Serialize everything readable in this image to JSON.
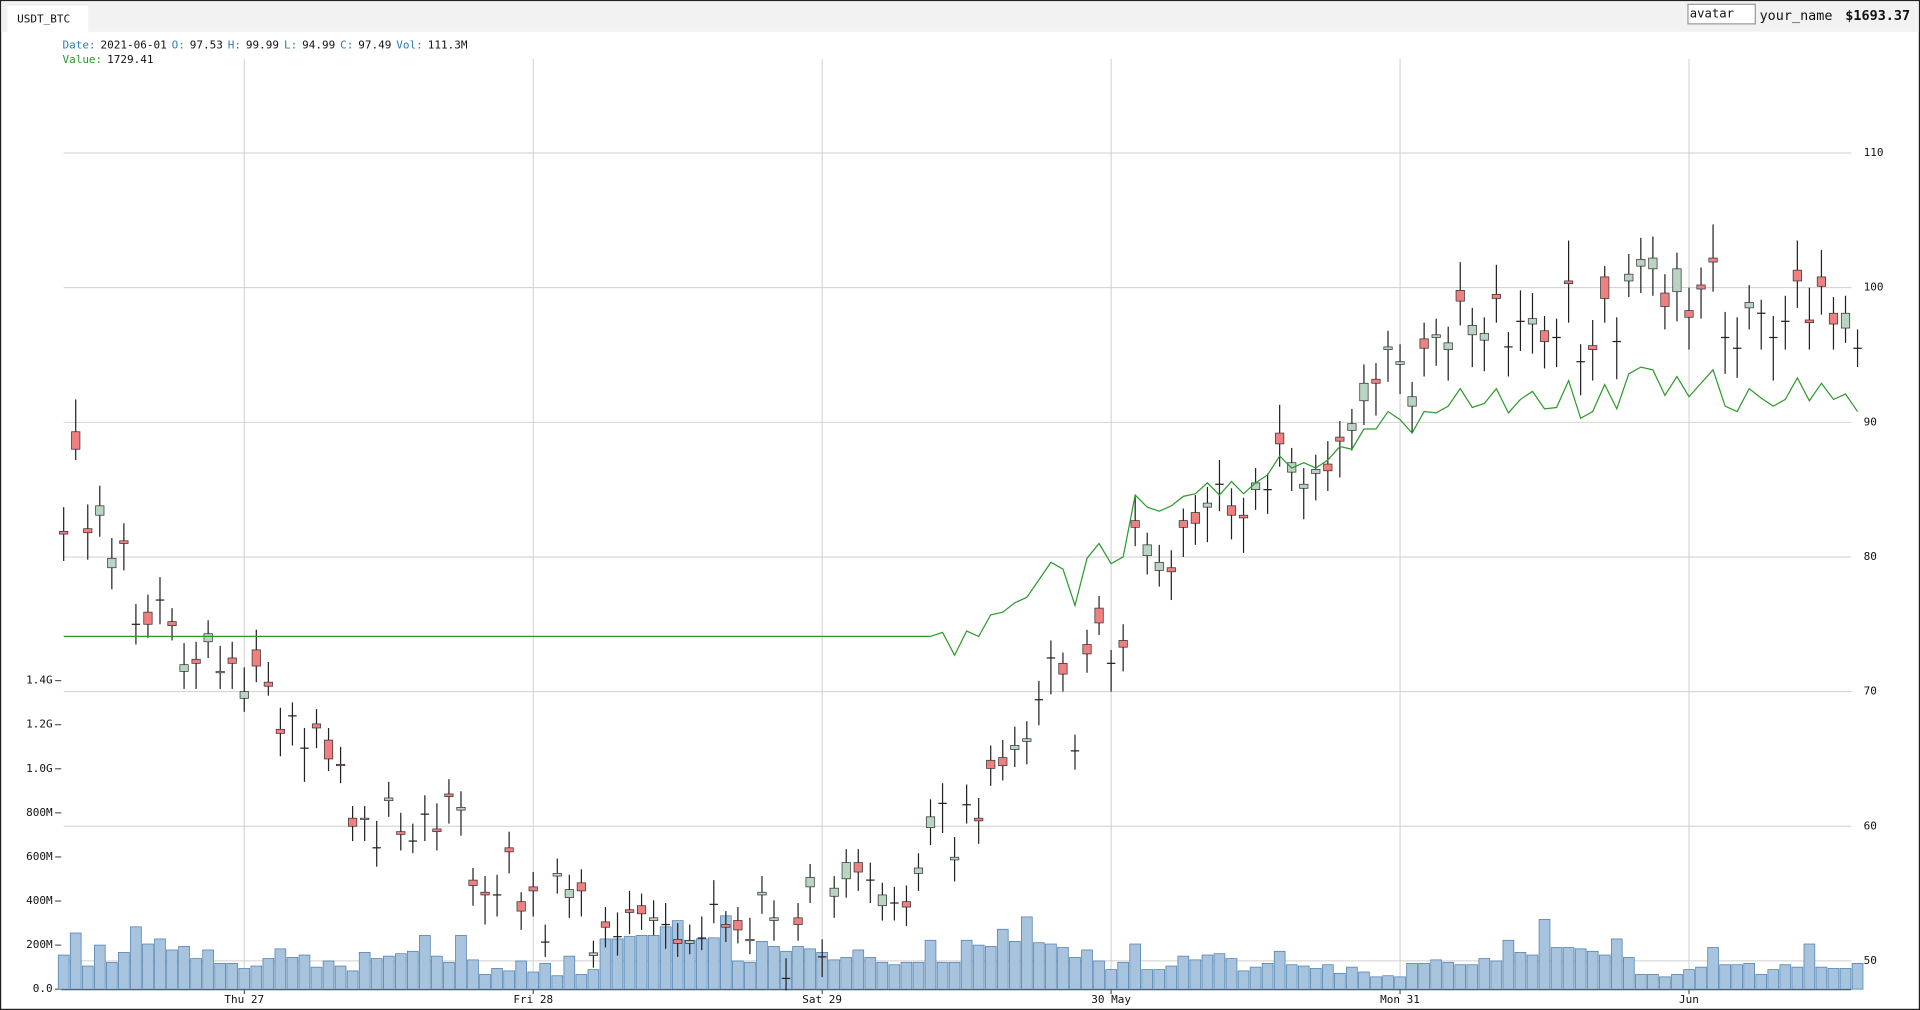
{
  "header": {
    "symbol": "USDT_BTC",
    "avatar": "avatar",
    "user": "your_name",
    "balance": "$1693.37"
  },
  "info": [
    {
      "label": "Date:",
      "value": "2021-06-01"
    },
    {
      "label": "O:",
      "value": "97.53"
    },
    {
      "label": "H:",
      "value": "99.99"
    },
    {
      "label": "L:",
      "value": "94.99"
    },
    {
      "label": "C:",
      "value": "97.49"
    },
    {
      "label": "Vol:",
      "value": "111.3M"
    }
  ],
  "value_info": {
    "label": "Value:",
    "value": "1729.41"
  },
  "chart_data": {
    "type": "candlestick",
    "grid": true,
    "up_color": "#b9d5c2",
    "down_color": "#f08080",
    "wick_color": "#222222",
    "ylim": [
      47.9,
      117
    ],
    "yticks": [
      50,
      60,
      70,
      80,
      90,
      100,
      110
    ],
    "y2lim": [
      0,
      4222
    ],
    "y2ticks": [
      {
        "value": 0,
        "label": "0.0"
      },
      {
        "value": 200,
        "label": "200M"
      },
      {
        "value": 400,
        "label": "400M"
      },
      {
        "value": 600,
        "label": "600M"
      },
      {
        "value": 800,
        "label": "800M"
      },
      {
        "value": 1000,
        "label": "1.0G"
      },
      {
        "value": 1200,
        "label": "1.2G"
      },
      {
        "value": 1400,
        "label": "1.4G"
      }
    ],
    "xticks": [
      {
        "value": 15,
        "label": "Thu 27"
      },
      {
        "value": 39,
        "label": "Fri 28"
      },
      {
        "value": 63,
        "label": "Sat 29"
      },
      {
        "value": 87,
        "label": "30 May"
      },
      {
        "value": 111,
        "label": "Mon 31"
      },
      {
        "value": 135,
        "label": "Jun"
      }
    ],
    "open": [
      81.9,
      89.3,
      82.1,
      83.1,
      79.2,
      81.2,
      75.0,
      75.9,
      76.8,
      75.2,
      71.5,
      72.4,
      73.7,
      71.4,
      72.5,
      69.5,
      73.1,
      70.7,
      67.2,
      68.2,
      65.8,
      67.6,
      66.4,
      64.6,
      60.6,
      60.5,
      58.4,
      61.9,
      59.6,
      58.9,
      60.9,
      59.8,
      62.4,
      61.2,
      56.0,
      55.1,
      54.9,
      58.4,
      54.4,
      55.5,
      51.4,
      56.3,
      54.7,
      55.8,
      50.4,
      52.9,
      51.8,
      53.8,
      54.1,
      53.0,
      52.7,
      51.6,
      51.3,
      51.7,
      54.2,
      52.7,
      53.0,
      51.5,
      54.9,
      53.0,
      48.7,
      53.2,
      55.5,
      50.3,
      54.8,
      56.1,
      57.3,
      56.0,
      54.1,
      54.3,
      54.4,
      56.5,
      59.9,
      61.7,
      57.5,
      61.6,
      60.6,
      64.9,
      65.1,
      65.7,
      66.3,
      69.4,
      72.5,
      72.1,
      65.6,
      73.5,
      76.2,
      72.1,
      73.8,
      82.7,
      80.1,
      79.0,
      79.2,
      82.7,
      83.3,
      83.7,
      85.4,
      83.8,
      83.1,
      85.0,
      85.0,
      89.2,
      86.3,
      85.1,
      86.2,
      86.9,
      88.9,
      89.4,
      91.6,
      93.2,
      95.4,
      94.3,
      91.2,
      96.2,
      96.3,
      95.4,
      99.8,
      96.5,
      96.1,
      99.5,
      95.6,
      97.5,
      97.3,
      96.8,
      96.3,
      100.5,
      94.5,
      95.7,
      100.8,
      96.0,
      100.5,
      101.6,
      101.4,
      99.6,
      99.7,
      98.3,
      100.2,
      102.2,
      96.3,
      95.5,
      98.5,
      98.1,
      96.3,
      97.5,
      101.3,
      97.6,
      100.8,
      98.1,
      97.0,
      95.5
    ],
    "high": [
      83.7,
      91.7,
      83.9,
      85.3,
      81.4,
      82.5,
      76.5,
      77.2,
      78.5,
      76.2,
      73.6,
      73.7,
      75.3,
      73.4,
      73.7,
      71.8,
      74.6,
      72.2,
      68.8,
      69.2,
      67.3,
      68.7,
      67.3,
      65.9,
      61.5,
      61.5,
      60.4,
      63.3,
      61.0,
      60.2,
      62.3,
      61.7,
      63.5,
      62.6,
      56.9,
      56.3,
      56.4,
      59.6,
      55.1,
      56.6,
      52.7,
      57.6,
      56.4,
      56.8,
      51.5,
      54.0,
      53.6,
      55.2,
      55.0,
      54.5,
      54.3,
      52.8,
      52.7,
      53.3,
      56.0,
      53.7,
      54.0,
      53.2,
      56.3,
      54.5,
      50.2,
      54.3,
      57.2,
      51.6,
      56.3,
      58.3,
      58.3,
      57.3,
      55.8,
      55.5,
      55.6,
      58.0,
      62.0,
      63.2,
      59.2,
      63.1,
      62.1,
      66.0,
      66.4,
      67.4,
      67.8,
      70.8,
      73.8,
      72.9,
      66.8,
      74.6,
      77.1,
      73.1,
      75.0,
      84.6,
      81.8,
      80.9,
      80.5,
      83.6,
      84.6,
      85.2,
      87.2,
      85.1,
      84.4,
      86.6,
      86.2,
      91.3,
      88.1,
      86.6,
      87.6,
      88.6,
      90.1,
      91.0,
      94.3,
      94.4,
      96.8,
      95.8,
      93.0,
      97.4,
      97.7,
      97.1,
      101.9,
      98.5,
      97.8,
      101.7,
      96.7,
      99.8,
      99.6,
      97.9,
      97.7,
      103.5,
      95.8,
      97.6,
      101.6,
      97.8,
      102.5,
      103.7,
      103.8,
      101.0,
      102.6,
      100.0,
      101.5,
      104.7,
      98.2,
      97.8,
      100.2,
      99.1,
      97.9,
      99.4,
      103.5,
      100.0,
      102.8,
      99.3,
      99.4,
      96.9
    ],
    "low": [
      79.7,
      87.2,
      79.8,
      81.5,
      77.6,
      79.0,
      73.5,
      74.0,
      75.0,
      73.8,
      70.2,
      70.2,
      72.5,
      70.2,
      70.2,
      68.5,
      70.7,
      69.7,
      65.2,
      66.0,
      63.3,
      65.8,
      64.1,
      63.2,
      58.9,
      58.9,
      57.0,
      60.7,
      58.2,
      58.0,
      58.9,
      58.2,
      60.2,
      59.3,
      54.1,
      52.7,
      53.3,
      56.5,
      52.3,
      53.3,
      50.3,
      55.0,
      53.2,
      53.3,
      49.5,
      51.0,
      50.4,
      52.0,
      52.3,
      51.9,
      50.9,
      50.3,
      50.5,
      50.8,
      52.8,
      51.4,
      51.3,
      50.5,
      53.5,
      51.5,
      47.8,
      51.5,
      54.3,
      48.8,
      53.2,
      54.7,
      55.2,
      54.3,
      53.0,
      53.0,
      52.6,
      55.2,
      58.6,
      59.5,
      55.9,
      60.2,
      58.7,
      63.0,
      63.4,
      64.4,
      64.6,
      67.5,
      69.8,
      70.0,
      64.2,
      71.4,
      74.2,
      70.0,
      71.5,
      80.8,
      78.7,
      77.8,
      76.8,
      80.0,
      80.9,
      81.1,
      83.4,
      81.3,
      80.3,
      83.5,
      83.2,
      86.7,
      84.9,
      82.8,
      84.2,
      84.9,
      85.9,
      87.9,
      89.8,
      90.5,
      93.0,
      92.1,
      89.2,
      93.4,
      94.2,
      93.1,
      97.2,
      94.1,
      93.8,
      97.4,
      93.4,
      95.3,
      95.1,
      94.0,
      94.1,
      97.4,
      92.0,
      93.1,
      97.4,
      93.2,
      99.3,
      99.6,
      99.4,
      96.9,
      97.5,
      95.4,
      97.7,
      99.7,
      93.6,
      93.3,
      96.9,
      95.4,
      93.1,
      95.4,
      98.5,
      95.4,
      98.0,
      95.4,
      95.9,
      94.1
    ],
    "close": [
      81.7,
      88.0,
      81.8,
      83.8,
      79.9,
      81.0,
      75.0,
      75.0,
      76.8,
      74.9,
      72.0,
      72.1,
      74.3,
      71.5,
      72.1,
      70.0,
      71.9,
      70.4,
      66.9,
      68.2,
      65.8,
      67.3,
      65.0,
      64.5,
      60.0,
      60.6,
      58.4,
      62.1,
      59.4,
      58.9,
      60.9,
      59.6,
      62.2,
      61.4,
      55.6,
      54.9,
      54.9,
      58.1,
      53.7,
      55.2,
      51.4,
      56.5,
      55.3,
      55.2,
      50.6,
      52.5,
      51.8,
      53.6,
      53.5,
      53.2,
      52.7,
      51.3,
      51.5,
      51.7,
      54.2,
      52.5,
      52.3,
      51.6,
      55.1,
      53.2,
      48.7,
      52.7,
      56.2,
      50.3,
      55.4,
      57.3,
      56.6,
      56.0,
      54.9,
      54.3,
      54.0,
      56.9,
      60.7,
      61.7,
      57.7,
      61.6,
      60.4,
      64.3,
      64.5,
      66.0,
      66.5,
      69.4,
      72.5,
      71.3,
      65.6,
      72.8,
      75.1,
      72.1,
      73.3,
      82.2,
      80.9,
      79.6,
      78.9,
      82.2,
      82.5,
      84.0,
      85.4,
      83.1,
      82.9,
      85.5,
      85.0,
      88.4,
      87.0,
      85.4,
      86.5,
      86.4,
      88.6,
      89.9,
      92.9,
      92.9,
      95.6,
      94.5,
      91.9,
      95.5,
      96.5,
      95.9,
      99.0,
      97.2,
      96.6,
      99.2,
      95.6,
      97.5,
      97.7,
      96.0,
      96.3,
      100.3,
      94.5,
      95.4,
      99.2,
      96.0,
      101.0,
      102.1,
      102.2,
      98.6,
      101.4,
      97.8,
      99.9,
      101.9,
      96.3,
      95.5,
      98.9,
      98.1,
      96.3,
      97.5,
      100.5,
      97.4,
      100.1,
      97.3,
      98.1,
      95.5
    ],
    "volume": {
      "axis": "y2",
      "color": "#a7c3de",
      "values": [
        155,
        255,
        105,
        200,
        122,
        167,
        283,
        205,
        228,
        178,
        194,
        139,
        178,
        117,
        117,
        94,
        105,
        139,
        183,
        144,
        155,
        100,
        128,
        105,
        83,
        167,
        139,
        150,
        161,
        172,
        244,
        150,
        122,
        244,
        133,
        67,
        94,
        83,
        128,
        78,
        117,
        61,
        150,
        67,
        89,
        228,
        228,
        239,
        244,
        244,
        283,
        311,
        222,
        228,
        233,
        333,
        128,
        122,
        217,
        194,
        172,
        194,
        183,
        167,
        133,
        144,
        178,
        144,
        122,
        111,
        122,
        122,
        222,
        122,
        122,
        222,
        200,
        194,
        272,
        217,
        328,
        211,
        205,
        189,
        144,
        178,
        128,
        89,
        122,
        205,
        89,
        89,
        105,
        150,
        133,
        155,
        161,
        139,
        83,
        100,
        117,
        172,
        111,
        105,
        94,
        111,
        72,
        100,
        78,
        56,
        61,
        56,
        117,
        117,
        133,
        122,
        111,
        111,
        139,
        128,
        222,
        167,
        155,
        317,
        189,
        189,
        183,
        172,
        155,
        228,
        144,
        67,
        67,
        56,
        67,
        89,
        100,
        189,
        111,
        111,
        117,
        67,
        89,
        111,
        100,
        205,
        100,
        94,
        94,
        117
      ]
    },
    "line": {
      "color": "#2e9a2e",
      "values": [
        74.1,
        74.1,
        74.1,
        74.1,
        74.1,
        74.1,
        74.1,
        74.1,
        74.1,
        74.1,
        74.1,
        74.1,
        74.1,
        74.1,
        74.1,
        74.1,
        74.1,
        74.1,
        74.1,
        74.1,
        74.1,
        74.1,
        74.1,
        74.1,
        74.1,
        74.1,
        74.1,
        74.1,
        74.1,
        74.1,
        74.1,
        74.1,
        74.1,
        74.1,
        74.1,
        74.1,
        74.1,
        74.1,
        74.1,
        74.1,
        74.1,
        74.1,
        74.1,
        74.1,
        74.1,
        74.1,
        74.1,
        74.1,
        74.1,
        74.1,
        74.1,
        74.1,
        74.1,
        74.1,
        74.1,
        74.1,
        74.1,
        74.1,
        74.1,
        74.1,
        74.1,
        74.1,
        74.1,
        74.1,
        74.1,
        74.1,
        74.1,
        74.1,
        74.1,
        74.1,
        74.1,
        74.1,
        74.1,
        74.4,
        72.7,
        74.5,
        74.1,
        75.7,
        75.9,
        76.6,
        77.0,
        78.3,
        79.6,
        79.1,
        76.4,
        79.9,
        81.0,
        79.5,
        80.0,
        84.6,
        83.7,
        83.4,
        83.8,
        84.5,
        84.7,
        85.5,
        84.6,
        85.6,
        84.7,
        85.5,
        86.1,
        87.5,
        86.6,
        87.0,
        86.6,
        87.2,
        88.2,
        88.0,
        89.5,
        89.5,
        90.8,
        90.2,
        89.2,
        90.8,
        90.7,
        91.2,
        92.5,
        91.1,
        91.4,
        92.5,
        90.7,
        91.7,
        92.3,
        91.0,
        91.1,
        93.1,
        90.3,
        90.8,
        92.8,
        91.0,
        93.6,
        94.1,
        93.9,
        92.0,
        93.4,
        91.9,
        92.9,
        93.9,
        91.2,
        90.8,
        92.5,
        91.8,
        91.2,
        91.7,
        93.3,
        91.6,
        92.9,
        91.7,
        92.1,
        90.8
      ]
    }
  }
}
